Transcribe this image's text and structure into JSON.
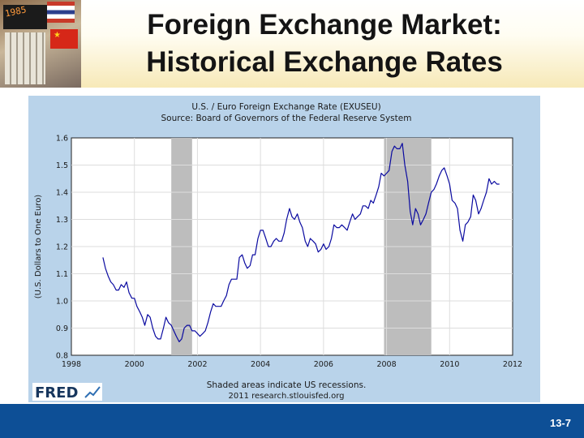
{
  "slide": {
    "title_line1": "Foreign Exchange Market:",
    "title_line2": "Historical Exchange Rates",
    "page_number": "13-7",
    "photo_digits": "1985"
  },
  "logo": {
    "text": "FRED"
  },
  "colors": {
    "chart_background": "#b9d3ea",
    "plot_background": "#ffffff",
    "line": "#0a0aa0",
    "recession_shading": "#bdbdbd",
    "footer": "#0d4f96"
  },
  "chart_data": {
    "type": "line",
    "title": "U.S. / Euro Foreign Exchange Rate (EXUSEU)",
    "subtitle": "Source: Board of Governors of the Federal Reserve System",
    "ylabel": "(U.S. Dollars to One Euro)",
    "xlabel": "",
    "xlim": [
      1998,
      2012
    ],
    "ylim": [
      0.8,
      1.6
    ],
    "x_ticks": [
      "1998",
      "2000",
      "2002",
      "2004",
      "2006",
      "2008",
      "2010",
      "2012"
    ],
    "y_ticks": [
      "0.8",
      "0.9",
      "1.0",
      "1.1",
      "1.2",
      "1.3",
      "1.4",
      "1.5",
      "1.6"
    ],
    "grid": true,
    "recessions": [
      [
        2001.17,
        2001.83
      ],
      [
        2007.92,
        2009.42
      ]
    ],
    "note_line1": "Shaded areas indicate US recessions.",
    "note_line2": "2011 research.stlouisfed.org",
    "series": [
      {
        "x": [
          1999.0,
          1999.08,
          1999.17,
          1999.25,
          1999.33,
          1999.42,
          1999.5,
          1999.58,
          1999.67,
          1999.75,
          1999.83,
          1999.92,
          2000.0,
          2000.08,
          2000.17,
          2000.25,
          2000.33,
          2000.42,
          2000.5,
          2000.58,
          2000.67,
          2000.75,
          2000.83,
          2000.92,
          2001.0,
          2001.08,
          2001.17,
          2001.25,
          2001.33,
          2001.42,
          2001.5,
          2001.58,
          2001.67,
          2001.75,
          2001.83,
          2001.92,
          2002.0,
          2002.08,
          2002.17,
          2002.25,
          2002.33,
          2002.42,
          2002.5,
          2002.58,
          2002.67,
          2002.75,
          2002.83,
          2002.92,
          2003.0,
          2003.08,
          2003.17,
          2003.25,
          2003.33,
          2003.42,
          2003.5,
          2003.58,
          2003.67,
          2003.75,
          2003.83,
          2003.92,
          2004.0,
          2004.08,
          2004.17,
          2004.25,
          2004.33,
          2004.42,
          2004.5,
          2004.58,
          2004.67,
          2004.75,
          2004.83,
          2004.92,
          2005.0,
          2005.08,
          2005.17,
          2005.25,
          2005.33,
          2005.42,
          2005.5,
          2005.58,
          2005.67,
          2005.75,
          2005.83,
          2005.92,
          2006.0,
          2006.08,
          2006.17,
          2006.25,
          2006.33,
          2006.42,
          2006.5,
          2006.58,
          2006.67,
          2006.75,
          2006.83,
          2006.92,
          2007.0,
          2007.08,
          2007.17,
          2007.25,
          2007.33,
          2007.42,
          2007.5,
          2007.58,
          2007.67,
          2007.75,
          2007.83,
          2007.92,
          2008.0,
          2008.08,
          2008.17,
          2008.25,
          2008.33,
          2008.42,
          2008.5,
          2008.58,
          2008.67,
          2008.75,
          2008.83,
          2008.92,
          2009.0,
          2009.08,
          2009.17,
          2009.25,
          2009.33,
          2009.42,
          2009.5,
          2009.58,
          2009.67,
          2009.75,
          2009.83,
          2009.92,
          2010.0,
          2010.08,
          2010.17,
          2010.25,
          2010.33,
          2010.42,
          2010.5,
          2010.58,
          2010.67,
          2010.75,
          2010.83,
          2010.92,
          2011.0,
          2011.08,
          2011.17,
          2011.25,
          2011.33,
          2011.42,
          2011.5,
          2011.58
        ],
        "values": [
          1.16,
          1.12,
          1.09,
          1.07,
          1.06,
          1.04,
          1.04,
          1.06,
          1.05,
          1.07,
          1.03,
          1.01,
          1.01,
          0.98,
          0.96,
          0.94,
          0.91,
          0.95,
          0.94,
          0.9,
          0.87,
          0.86,
          0.86,
          0.9,
          0.94,
          0.92,
          0.91,
          0.89,
          0.87,
          0.85,
          0.86,
          0.9,
          0.91,
          0.91,
          0.89,
          0.89,
          0.88,
          0.87,
          0.88,
          0.89,
          0.92,
          0.96,
          0.99,
          0.98,
          0.98,
          0.98,
          1.0,
          1.02,
          1.06,
          1.08,
          1.08,
          1.08,
          1.16,
          1.17,
          1.14,
          1.12,
          1.13,
          1.17,
          1.17,
          1.23,
          1.26,
          1.26,
          1.23,
          1.2,
          1.2,
          1.22,
          1.23,
          1.22,
          1.22,
          1.25,
          1.3,
          1.34,
          1.31,
          1.3,
          1.32,
          1.29,
          1.27,
          1.22,
          1.2,
          1.23,
          1.22,
          1.21,
          1.18,
          1.19,
          1.21,
          1.19,
          1.2,
          1.23,
          1.28,
          1.27,
          1.27,
          1.28,
          1.27,
          1.26,
          1.29,
          1.32,
          1.3,
          1.31,
          1.32,
          1.35,
          1.35,
          1.34,
          1.37,
          1.36,
          1.39,
          1.42,
          1.47,
          1.46,
          1.47,
          1.48,
          1.55,
          1.57,
          1.56,
          1.56,
          1.58,
          1.5,
          1.44,
          1.33,
          1.28,
          1.34,
          1.32,
          1.28,
          1.3,
          1.32,
          1.36,
          1.4,
          1.41,
          1.43,
          1.46,
          1.48,
          1.49,
          1.46,
          1.43,
          1.37,
          1.36,
          1.34,
          1.26,
          1.22,
          1.28,
          1.29,
          1.31,
          1.39,
          1.37,
          1.32,
          1.34,
          1.37,
          1.4,
          1.45,
          1.43,
          1.44,
          1.43,
          1.43
        ]
      }
    ]
  }
}
